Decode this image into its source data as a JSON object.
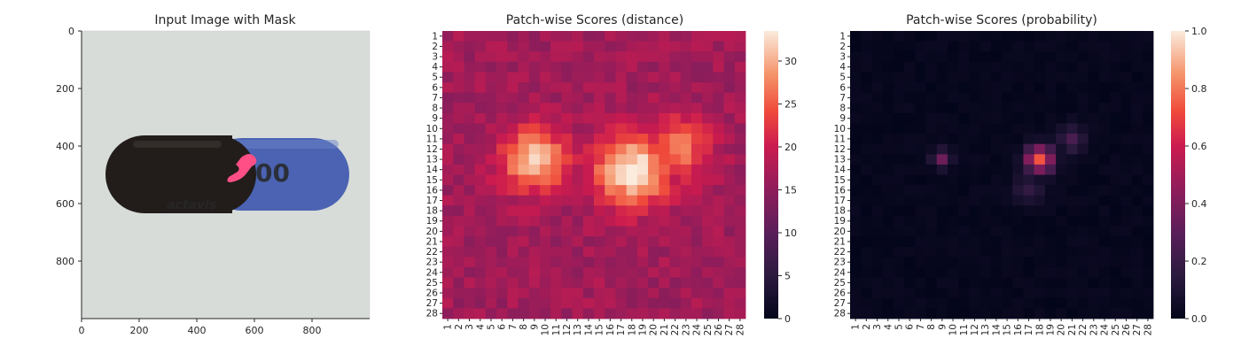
{
  "chart_data": [
    {
      "type": "image",
      "title": "Input Image with Mask",
      "xlim": [
        0,
        1000
      ],
      "ylim": [
        1000,
        0
      ],
      "x_ticks": [
        "0",
        "200",
        "400",
        "600",
        "800"
      ],
      "y_ticks": [
        "0",
        "200",
        "400",
        "600",
        "800"
      ],
      "image_text": "actavis",
      "capsule_colors": {
        "cap": "#241f1c",
        "body": "#4a62b0",
        "mask": "#ff4f86",
        "background": "#d6dcd9"
      }
    },
    {
      "type": "heatmap",
      "title": "Patch-wise Scores (distance)",
      "rows": 28,
      "cols": 28,
      "row_labels": [
        "1",
        "2",
        "3",
        "4",
        "5",
        "6",
        "7",
        "8",
        "9",
        "10",
        "11",
        "12",
        "13",
        "14",
        "15",
        "16",
        "17",
        "18",
        "19",
        "20",
        "21",
        "22",
        "23",
        "24",
        "25",
        "26",
        "27",
        "28"
      ],
      "col_labels": [
        "1",
        "2",
        "3",
        "4",
        "5",
        "6",
        "7",
        "8",
        "9",
        "10",
        "11",
        "12",
        "13",
        "14",
        "15",
        "16",
        "17",
        "18",
        "19",
        "20",
        "21",
        "22",
        "23",
        "24",
        "25",
        "26",
        "27",
        "28"
      ],
      "colorbar_ticks": [
        "0",
        "5",
        "10",
        "15",
        "20",
        "25",
        "30"
      ],
      "vmin": 0,
      "vmax": 33.5,
      "colormap": "rocket",
      "base_value": 16.5,
      "hotspots": [
        {
          "row": 13,
          "col": 9,
          "value": 31,
          "spread": 2.2
        },
        {
          "row": 14,
          "col": 18,
          "value": 33.5,
          "spread": 2.5
        },
        {
          "row": 12,
          "col": 22,
          "value": 27,
          "spread": 2.2
        }
      ]
    },
    {
      "type": "heatmap",
      "title": "Patch-wise Scores (probability)",
      "rows": 28,
      "cols": 28,
      "row_labels": [
        "1",
        "2",
        "3",
        "4",
        "5",
        "6",
        "7",
        "8",
        "9",
        "10",
        "11",
        "12",
        "13",
        "14",
        "15",
        "16",
        "17",
        "18",
        "19",
        "20",
        "21",
        "22",
        "23",
        "24",
        "25",
        "26",
        "27",
        "28"
      ],
      "col_labels": [
        "1",
        "2",
        "3",
        "4",
        "5",
        "6",
        "7",
        "8",
        "9",
        "10",
        "11",
        "12",
        "13",
        "14",
        "15",
        "16",
        "17",
        "18",
        "19",
        "20",
        "21",
        "22",
        "23",
        "24",
        "25",
        "26",
        "27",
        "28"
      ],
      "colorbar_ticks": [
        "0.0",
        "0.2",
        "0.4",
        "0.6",
        "0.8",
        "1.0"
      ],
      "vmin": 0,
      "vmax": 1,
      "colormap": "rocket",
      "base_value": 0.0,
      "hotspots": [
        {
          "row": 13,
          "col": 18,
          "value": 0.72,
          "spread": 0.9
        },
        {
          "row": 13,
          "col": 9,
          "value": 0.35,
          "spread": 0.6
        },
        {
          "row": 11,
          "col": 21,
          "value": 0.22,
          "spread": 0.9
        },
        {
          "row": 16,
          "col": 17,
          "value": 0.15,
          "spread": 1.0
        }
      ]
    }
  ]
}
